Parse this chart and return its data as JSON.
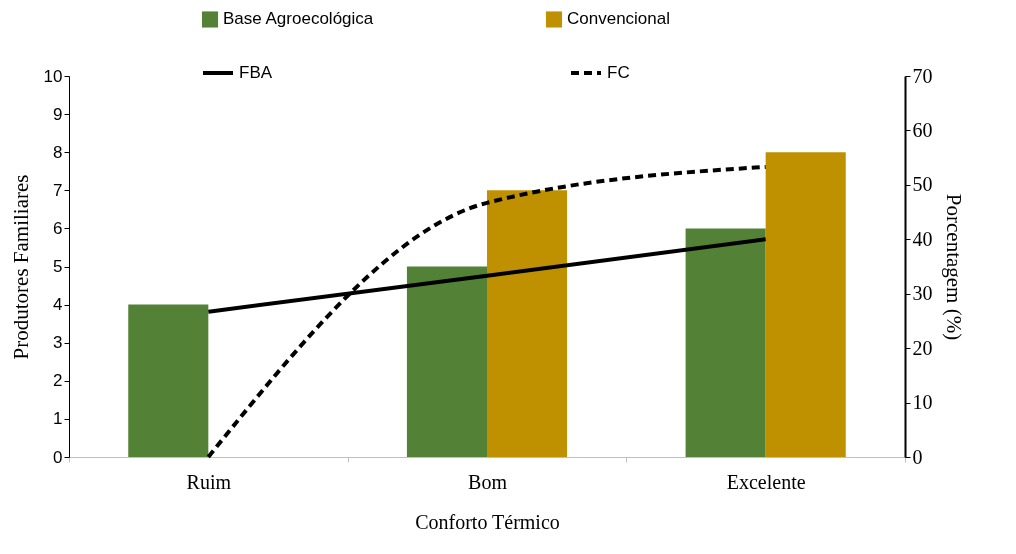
{
  "chart_data": {
    "type": "bar",
    "xlabel": "Conforto Térmico",
    "ylabel": "Produtores Familiares",
    "y2label": "Porcentagem (%)",
    "categories": [
      "Ruim",
      "Bom",
      "Excelente"
    ],
    "series": [
      {
        "name": "Base Agroecológica",
        "color": "#538135",
        "values": [
          4,
          5,
          6
        ]
      },
      {
        "name": "Convencional",
        "color": "#bf9000",
        "values": [
          0,
          7,
          8
        ]
      },
      {
        "name": "FBA",
        "type": "line",
        "axis": "y2",
        "color": "#000000",
        "line_style": "solid",
        "values": [
          26.7,
          33.3,
          40
        ]
      },
      {
        "name": "FC",
        "type": "line",
        "axis": "y2",
        "color": "#000000",
        "line_style": "dashed",
        "values": [
          0,
          46.7,
          53.3
        ]
      }
    ],
    "ylim": [
      0,
      10
    ],
    "yticks": [
      0,
      1,
      2,
      3,
      4,
      5,
      6,
      7,
      8,
      9,
      10
    ],
    "y2lim": [
      0,
      70
    ],
    "y2ticks": [
      0,
      10,
      20,
      30,
      40,
      50,
      60,
      70
    ],
    "grid": false,
    "legend": "top"
  }
}
